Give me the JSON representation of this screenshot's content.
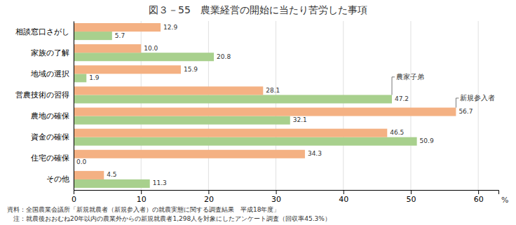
{
  "chart_data": {
    "type": "bar",
    "orientation": "horizontal",
    "title": "図３－55　農業経営の開始に当たり苦労した事項",
    "categories": [
      "相談窓口さがし",
      "家族の了解",
      "地域の選択",
      "営農技術の習得",
      "農地の確保",
      "資金の確保",
      "住宅の確保",
      "その他"
    ],
    "series": [
      {
        "name": "農家子弟",
        "color": "#a8d08d",
        "values": [
          5.7,
          20.8,
          1.9,
          47.2,
          32.1,
          50.9,
          0.0,
          11.3
        ],
        "value_labels": [
          "5.7",
          "20.8",
          "1.9",
          "47.2",
          "32.1",
          "50.9",
          "0.0",
          "11.3"
        ],
        "label_index": 3
      },
      {
        "name": "新規参入者",
        "color": "#f4b183",
        "values": [
          12.9,
          10.0,
          15.9,
          28.1,
          56.7,
          46.5,
          34.3,
          4.5
        ],
        "value_labels": [
          "12.9",
          "10.0",
          "15.9",
          "28.1",
          "56.7",
          "46.5",
          "34.3",
          "4.5"
        ],
        "label_index": 4
      }
    ],
    "xlabel": "%",
    "xlim": [
      0,
      63
    ],
    "xticks": [
      0,
      10,
      20,
      30,
      40,
      50,
      60
    ],
    "grid": true,
    "data_labels": true,
    "footnotes": [
      "資料：全国農業会議所「新規就農者（新規参入者）の就農実態に関する調査結果　平成18年度」",
      "　注：就農後おおむね20年以内の農業外からの新規就農者1,298人を対象にしたアンケート調査（回収率45.3%）"
    ]
  }
}
